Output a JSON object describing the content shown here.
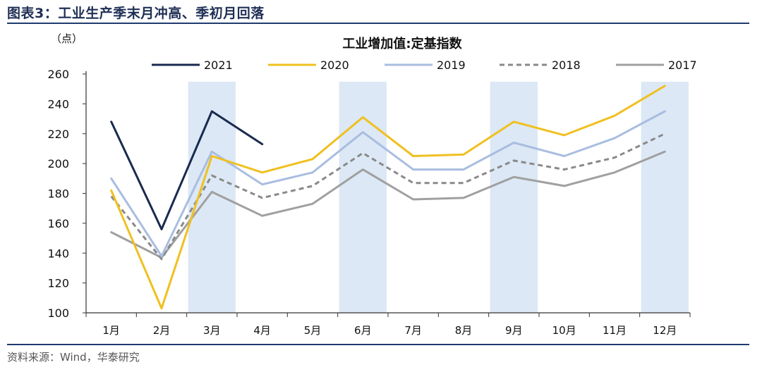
{
  "figure": {
    "label": "图表3：",
    "title": "工业生产季末月冲高、季初月回落",
    "source": "资料来源：Wind，华泰研究"
  },
  "chart_data": {
    "type": "line",
    "title": "工业增加值:定基指数",
    "ylabel": "（点）",
    "ylim": [
      100,
      260
    ],
    "yticks": [
      100,
      120,
      140,
      160,
      180,
      200,
      220,
      240,
      260
    ],
    "categories": [
      "1月",
      "2月",
      "3月",
      "4月",
      "5月",
      "6月",
      "7月",
      "8月",
      "9月",
      "10月",
      "11月",
      "12月"
    ],
    "highlight_categories": [
      "3月",
      "6月",
      "9月",
      "12月"
    ],
    "highlight_color": "#dce8f5",
    "series": [
      {
        "name": "2021",
        "color": "#1a2a4f",
        "dash": "solid",
        "values": [
          228,
          156,
          235,
          213,
          null,
          null,
          null,
          null,
          null,
          null,
          null,
          null
        ]
      },
      {
        "name": "2020",
        "color": "#f0c020",
        "dash": "solid",
        "values": [
          182,
          103,
          205,
          194,
          203,
          231,
          205,
          206,
          228,
          219,
          232,
          252
        ]
      },
      {
        "name": "2019",
        "color": "#a9bde0",
        "dash": "solid",
        "values": [
          190,
          138,
          208,
          186,
          194,
          221,
          196,
          196,
          214,
          205,
          217,
          235
        ]
      },
      {
        "name": "2018",
        "color": "#8a8a8a",
        "dash": "dashed",
        "values": [
          178,
          136,
          192,
          177,
          185,
          207,
          187,
          187,
          202,
          196,
          204,
          220
        ]
      },
      {
        "name": "2017",
        "color": "#a0a0a0",
        "dash": "solid",
        "values": [
          154,
          137,
          181,
          165,
          173,
          196,
          176,
          177,
          191,
          185,
          194,
          208
        ]
      }
    ]
  }
}
